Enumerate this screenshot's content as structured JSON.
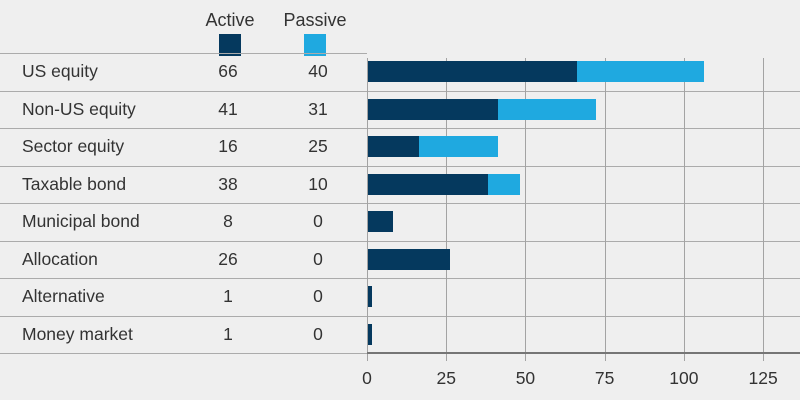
{
  "legend": {
    "active_label": "Active",
    "passive_label": "Passive"
  },
  "colors": {
    "background": "#efefef",
    "active": "#05395e",
    "passive": "#1fa9e0",
    "grid": "#a3a3a3",
    "separator": "#ababab",
    "axis": "#757575",
    "text": "#333333"
  },
  "chart_data": {
    "type": "bar",
    "orientation": "horizontal",
    "stacked": true,
    "grid": true,
    "legend_position": "top",
    "categories": [
      "US equity",
      "Non-US equity",
      "Sector equity",
      "Taxable bond",
      "Municipal bond",
      "Allocation",
      "Alternative",
      "Money market"
    ],
    "series": [
      {
        "name": "Active",
        "values": [
          66,
          41,
          16,
          38,
          8,
          26,
          1,
          1
        ]
      },
      {
        "name": "Passive",
        "values": [
          40,
          31,
          25,
          10,
          0,
          0,
          0,
          0
        ]
      }
    ],
    "x_ticks": [
      0,
      25,
      50,
      75,
      100,
      125
    ],
    "xlim": [
      0,
      125
    ]
  }
}
